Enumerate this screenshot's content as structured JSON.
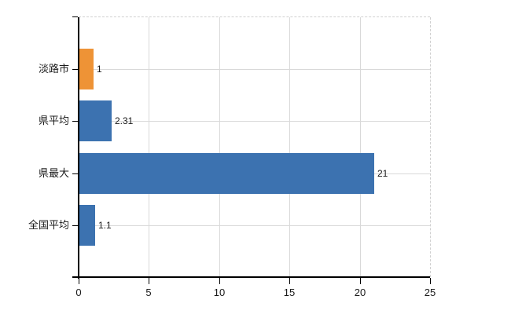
{
  "chart_data": {
    "type": "bar",
    "orientation": "horizontal",
    "title": "",
    "xlabel": "",
    "ylabel": "",
    "categories": [
      "淡路市",
      "県平均",
      "県最大",
      "全国平均"
    ],
    "values": [
      1,
      2.31,
      21,
      1.1
    ],
    "value_labels": [
      "1",
      "2.31",
      "21",
      "1.1"
    ],
    "bar_colors": [
      "#ee9336",
      "#3c72b0",
      "#3c72b0",
      "#3c72b0"
    ],
    "xlim": [
      0,
      25
    ],
    "x_ticks": [
      0,
      5,
      10,
      15,
      20,
      25
    ],
    "x_tick_labels": [
      "0",
      "5",
      "10",
      "15",
      "20",
      "25"
    ],
    "grid": true,
    "legend": "none"
  },
  "colors": {
    "bar_orange": "#ee9336",
    "bar_blue": "#3c72b0",
    "gridline": "#d9d9d9",
    "dashed_border": "#d0d0d0",
    "axis": "#000000",
    "text": "#1a1a1a",
    "background": "#ffffff"
  }
}
